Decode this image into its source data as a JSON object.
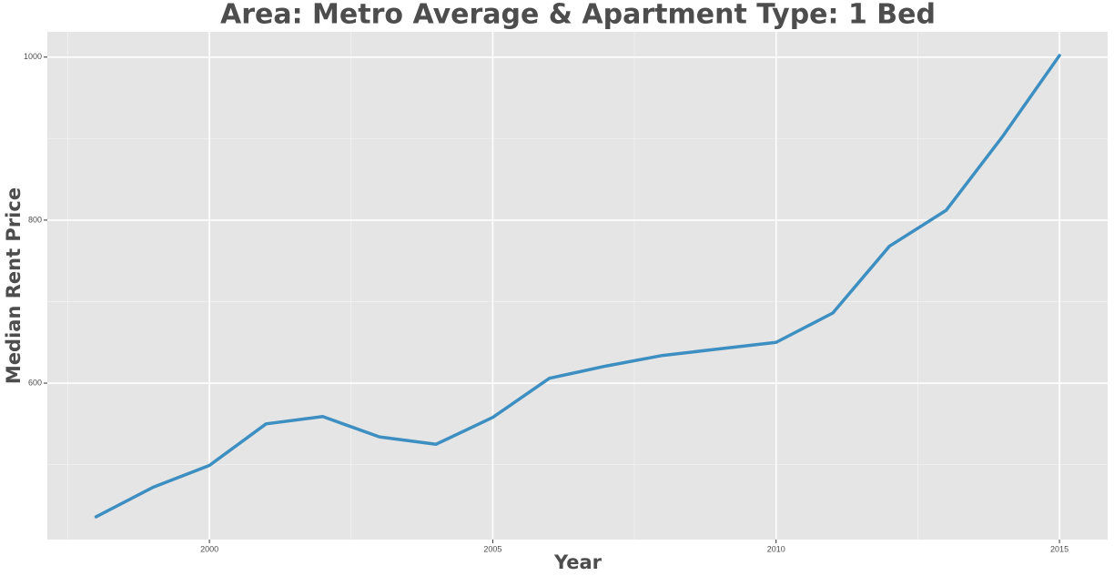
{
  "chart_data": {
    "type": "line",
    "title": "Area: Metro Average & Apartment Type: 1 Bed",
    "x_label": "Year",
    "y_label": "Median Rent Price",
    "x": [
      1998,
      1999,
      2000,
      2001,
      2002,
      2003,
      2004,
      2005,
      2006,
      2007,
      2008,
      2009,
      2010,
      2011,
      2012,
      2013,
      2014,
      2015
    ],
    "series": [
      {
        "name": "Median Rent Price",
        "color": "#3d8fc2",
        "values": [
          436,
          472,
          499,
          550,
          559,
          534,
          525,
          558,
          606,
          621,
          634,
          642,
          650,
          686,
          768,
          812,
          903,
          1002
        ]
      }
    ],
    "xlim": [
      1997.14,
      2015.85
    ],
    "xticks": [
      2000,
      2005,
      2010,
      2015
    ],
    "ylim": [
      408,
      1031
    ],
    "yticks": [
      600,
      800,
      1000
    ],
    "grid": true
  }
}
